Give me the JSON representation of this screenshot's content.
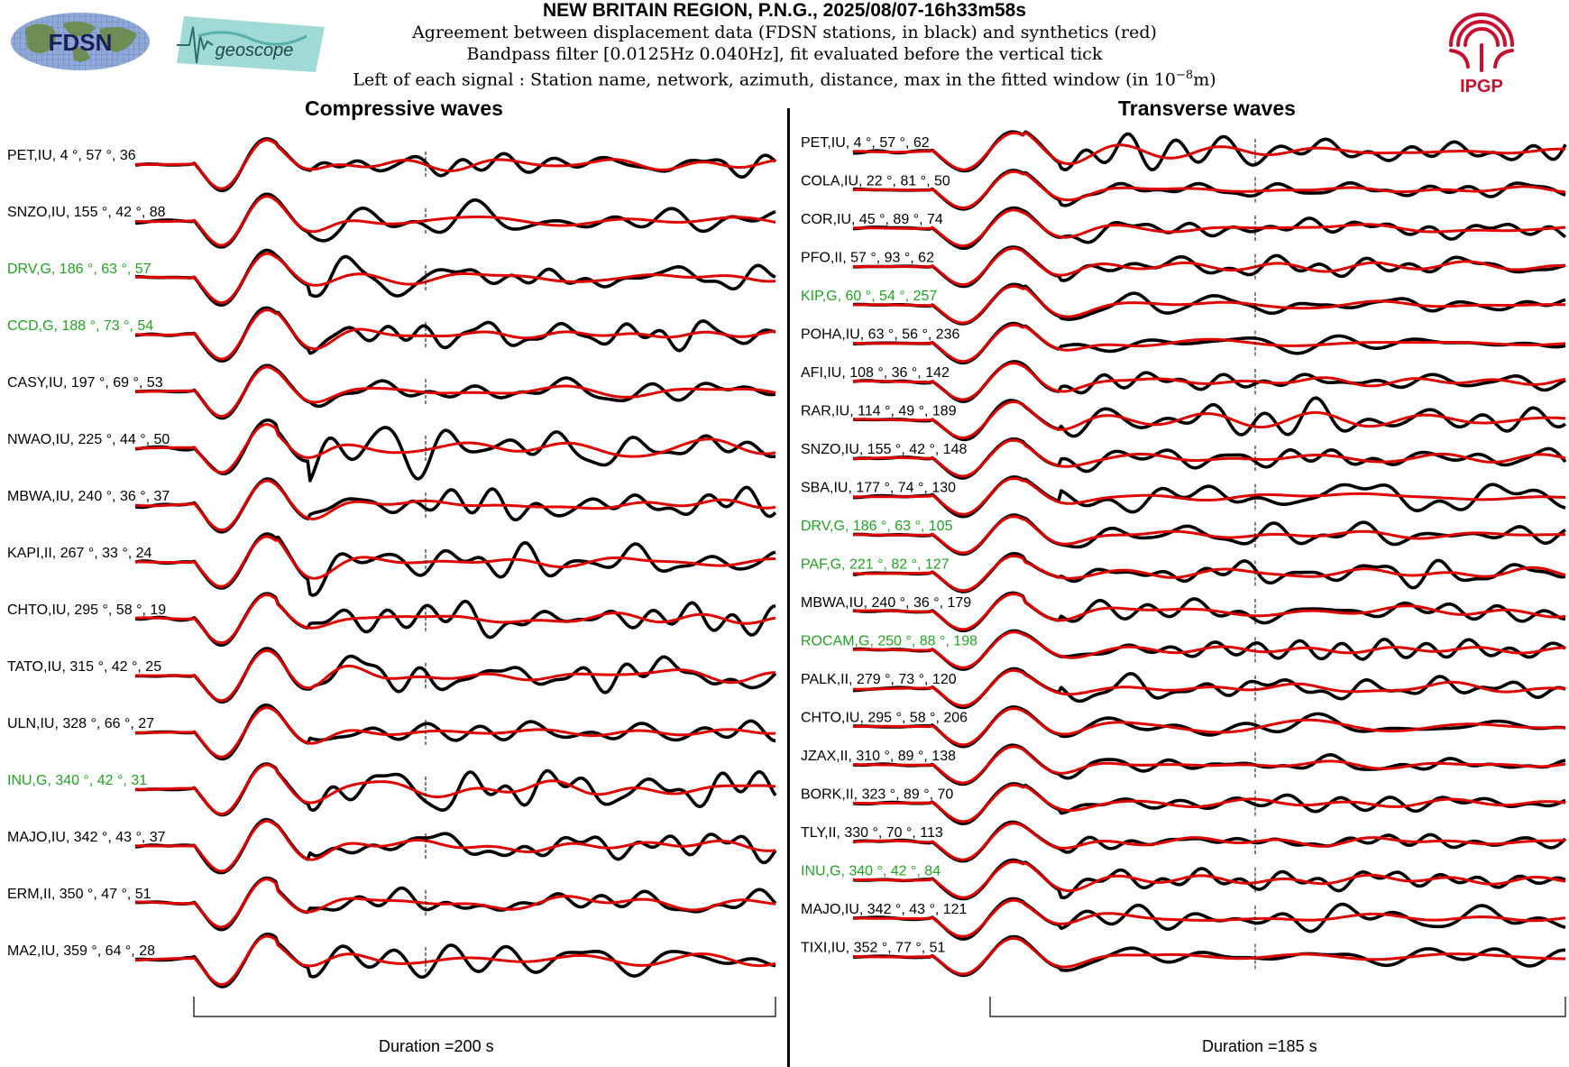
{
  "header": {
    "title": "NEW BRITAIN REGION, P.N.G., 2025/08/07-16h33m58s",
    "line1": "Agreement between displacement data (FDSN stations, in black) and synthetics (red)",
    "line2": "Bandpass filter [0.0125Hz 0.040Hz], fit evaluated before the vertical tick",
    "line3_prefix": "Left of each signal : Station name, network, azimuth, distance, max in the fitted window (in 10",
    "line3_exp": "−8",
    "line3_suffix": "m)"
  },
  "logos": {
    "fdsn": "FDSN",
    "geoscope": "geoscope",
    "ipgp": "IPGP"
  },
  "colors": {
    "data": "#000000",
    "synthetic": "#e00000",
    "green_station": "#1fa51f",
    "ipgp_red": "#c8102e"
  },
  "chart_data": [
    {
      "type": "line",
      "title": "Compressive waves",
      "xlabel": "Duration =200 s",
      "duration_s": 200,
      "series_legend": [
        "displacement data (black)",
        "synthetics (red)"
      ],
      "stations": [
        {
          "name": "PET",
          "net": "IU",
          "az": "4",
          "dist": "57",
          "max": "36",
          "green": false
        },
        {
          "name": "SNZO",
          "net": "IU",
          "az": "155",
          "dist": "42",
          "max": "88",
          "green": false
        },
        {
          "name": "DRV",
          "net": "G",
          "az": "186",
          "dist": "63",
          "max": "57",
          "green": true
        },
        {
          "name": "CCD",
          "net": "G",
          "az": "188",
          "dist": "73",
          "max": "54",
          "green": true
        },
        {
          "name": "CASY",
          "net": "IU",
          "az": "197",
          "dist": "69",
          "max": "53",
          "green": false
        },
        {
          "name": "NWAO",
          "net": "IU",
          "az": "225",
          "dist": "44",
          "max": "50",
          "green": false
        },
        {
          "name": "MBWA",
          "net": "IU",
          "az": "240",
          "dist": "36",
          "max": "37",
          "green": false
        },
        {
          "name": "KAPI",
          "net": "II",
          "az": "267",
          "dist": "33",
          "max": "24",
          "green": false
        },
        {
          "name": "CHTO",
          "net": "IU",
          "az": "295",
          "dist": "58",
          "max": "19",
          "green": false
        },
        {
          "name": "TATO",
          "net": "IU",
          "az": "315",
          "dist": "42",
          "max": "25",
          "green": false
        },
        {
          "name": "ULN",
          "net": "IU",
          "az": "328",
          "dist": "66",
          "max": "27",
          "green": false
        },
        {
          "name": "INU",
          "net": "G",
          "az": "340",
          "dist": "42",
          "max": "31",
          "green": true
        },
        {
          "name": "MAJO",
          "net": "IU",
          "az": "342",
          "dist": "43",
          "max": "37",
          "green": false
        },
        {
          "name": "ERM",
          "net": "II",
          "az": "350",
          "dist": "47",
          "max": "51",
          "green": false
        },
        {
          "name": "MA2",
          "net": "IU",
          "az": "359",
          "dist": "64",
          "max": "28",
          "green": false
        }
      ]
    },
    {
      "type": "line",
      "title": "Transverse waves",
      "xlabel": "Duration =185 s",
      "duration_s": 185,
      "series_legend": [
        "displacement data (black)",
        "synthetics (red)"
      ],
      "stations": [
        {
          "name": "PET",
          "net": "IU",
          "az": "4",
          "dist": "57",
          "max": "62",
          "green": false
        },
        {
          "name": "COLA",
          "net": "IU",
          "az": "22",
          "dist": "81",
          "max": "50",
          "green": false
        },
        {
          "name": "COR",
          "net": "IU",
          "az": "45",
          "dist": "89",
          "max": "74",
          "green": false
        },
        {
          "name": "PFO",
          "net": "II",
          "az": "57",
          "dist": "93",
          "max": "62",
          "green": false
        },
        {
          "name": "KIP",
          "net": "G",
          "az": "60",
          "dist": "54",
          "max": "257",
          "green": true
        },
        {
          "name": "POHA",
          "net": "IU",
          "az": "63",
          "dist": "56",
          "max": "236",
          "green": false
        },
        {
          "name": "AFI",
          "net": "IU",
          "az": "108",
          "dist": "36",
          "max": "142",
          "green": false
        },
        {
          "name": "RAR",
          "net": "IU",
          "az": "114",
          "dist": "49",
          "max": "189",
          "green": false
        },
        {
          "name": "SNZO",
          "net": "IU",
          "az": "155",
          "dist": "42",
          "max": "148",
          "green": false
        },
        {
          "name": "SBA",
          "net": "IU",
          "az": "177",
          "dist": "74",
          "max": "130",
          "green": false
        },
        {
          "name": "DRV",
          "net": "G",
          "az": "186",
          "dist": "63",
          "max": "105",
          "green": true
        },
        {
          "name": "PAF",
          "net": "G",
          "az": "221",
          "dist": "82",
          "max": "127",
          "green": true
        },
        {
          "name": "MBWA",
          "net": "IU",
          "az": "240",
          "dist": "36",
          "max": "179",
          "green": false
        },
        {
          "name": "ROCAM",
          "net": "G",
          "az": "250",
          "dist": "88",
          "max": "198",
          "green": true
        },
        {
          "name": "PALK",
          "net": "II",
          "az": "279",
          "dist": "73",
          "max": "120",
          "green": false
        },
        {
          "name": "CHTO",
          "net": "IU",
          "az": "295",
          "dist": "58",
          "max": "206",
          "green": false
        },
        {
          "name": "JZAX",
          "net": "II",
          "az": "310",
          "dist": "89",
          "max": "138",
          "green": false
        },
        {
          "name": "BORK",
          "net": "II",
          "az": "323",
          "dist": "89",
          "max": "70",
          "green": false
        },
        {
          "name": "TLY",
          "net": "II",
          "az": "330",
          "dist": "70",
          "max": "113",
          "green": false
        },
        {
          "name": "INU",
          "net": "G",
          "az": "340",
          "dist": "42",
          "max": "84",
          "green": true
        },
        {
          "name": "MAJO",
          "net": "IU",
          "az": "342",
          "dist": "43",
          "max": "121",
          "green": false
        },
        {
          "name": "TIXI",
          "net": "IU",
          "az": "352",
          "dist": "77",
          "max": "51",
          "green": false
        }
      ]
    }
  ]
}
